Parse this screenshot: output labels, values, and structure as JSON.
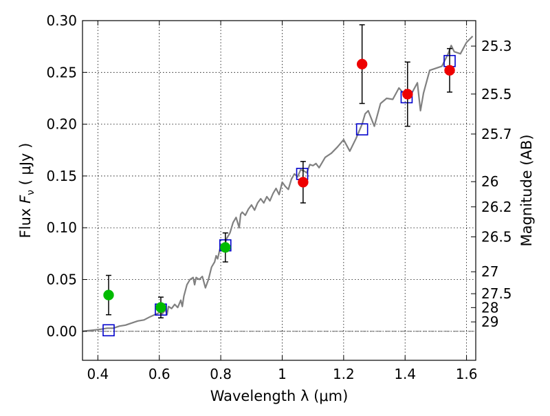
{
  "chart_data": {
    "type": "scatter",
    "xlabel": "Wavelength  λ (μm)",
    "ylabel": "Flux  F_ν  ( μJy )",
    "ylabel_parts": {
      "left": "Flux ",
      "symbol": "F",
      "subscript": "ν",
      "right": " ( μJy )"
    },
    "y2label": "Magnitude (AB)",
    "xlim": [
      0.35,
      1.63
    ],
    "ylim": [
      -0.028,
      0.3
    ],
    "grid": true,
    "x_ticks": [
      0.4,
      0.6,
      0.8,
      1.0,
      1.2,
      1.4,
      1.6
    ],
    "x_tick_labels": [
      "0.4",
      "0.6",
      "0.8",
      "1",
      "1.2",
      "1.4",
      "1.6"
    ],
    "y_ticks": [
      0.0,
      0.05,
      0.1,
      0.15,
      0.2,
      0.25,
      0.3
    ],
    "y_tick_labels": [
      "0.00",
      "0.05",
      "0.10",
      "0.15",
      "0.20",
      "0.25",
      "0.30"
    ],
    "y2_ticks": [
      {
        "label": "25.3",
        "flux": 0.2754
      },
      {
        "label": "25.5",
        "flux": 0.2291
      },
      {
        "label": "25.7",
        "flux": 0.1905
      },
      {
        "label": "26",
        "flux": 0.1445
      },
      {
        "label": "26.2",
        "flux": 0.1202
      },
      {
        "label": "26.5",
        "flux": 0.0912
      },
      {
        "label": "27",
        "flux": 0.0575
      },
      {
        "label": "27.5",
        "flux": 0.0363
      },
      {
        "label": "28",
        "flux": 0.0229
      },
      {
        "label": "29",
        "flux": 0.0091
      }
    ],
    "zero_line": 0.0,
    "series": [
      {
        "marker": "line",
        "color": "#808080",
        "x": [
          0.35,
          0.38,
          0.41,
          0.43,
          0.45,
          0.47,
          0.49,
          0.51,
          0.53,
          0.55,
          0.57,
          0.585,
          0.6,
          0.61,
          0.62,
          0.625,
          0.63,
          0.64,
          0.65,
          0.66,
          0.67,
          0.675,
          0.68,
          0.69,
          0.7,
          0.71,
          0.715,
          0.72,
          0.73,
          0.74,
          0.75,
          0.76,
          0.77,
          0.78,
          0.785,
          0.79,
          0.8,
          0.81,
          0.82,
          0.83,
          0.84,
          0.85,
          0.86,
          0.865,
          0.87,
          0.88,
          0.89,
          0.9,
          0.91,
          0.92,
          0.93,
          0.94,
          0.95,
          0.96,
          0.97,
          0.98,
          0.99,
          1.0,
          1.01,
          1.02,
          1.03,
          1.04,
          1.05,
          1.06,
          1.07,
          1.08,
          1.09,
          1.1,
          1.11,
          1.12,
          1.14,
          1.16,
          1.18,
          1.2,
          1.22,
          1.24,
          1.26,
          1.27,
          1.28,
          1.3,
          1.32,
          1.34,
          1.36,
          1.38,
          1.4,
          1.42,
          1.44,
          1.45,
          1.46,
          1.48,
          1.5,
          1.52,
          1.53,
          1.54,
          1.55,
          1.56,
          1.58,
          1.6,
          1.62
        ],
        "y": [
          0.0,
          0.001,
          0.002,
          0.003,
          0.003,
          0.005,
          0.006,
          0.008,
          0.01,
          0.011,
          0.014,
          0.016,
          0.018,
          0.017,
          0.021,
          0.016,
          0.024,
          0.022,
          0.026,
          0.023,
          0.03,
          0.024,
          0.034,
          0.045,
          0.05,
          0.052,
          0.045,
          0.052,
          0.05,
          0.053,
          0.042,
          0.05,
          0.062,
          0.067,
          0.073,
          0.07,
          0.083,
          0.08,
          0.09,
          0.095,
          0.105,
          0.11,
          0.1,
          0.113,
          0.115,
          0.112,
          0.118,
          0.122,
          0.117,
          0.124,
          0.128,
          0.124,
          0.13,
          0.126,
          0.133,
          0.138,
          0.132,
          0.144,
          0.14,
          0.137,
          0.147,
          0.152,
          0.149,
          0.156,
          0.155,
          0.153,
          0.161,
          0.16,
          0.162,
          0.158,
          0.168,
          0.172,
          0.178,
          0.185,
          0.174,
          0.186,
          0.2,
          0.21,
          0.213,
          0.198,
          0.22,
          0.225,
          0.224,
          0.235,
          0.228,
          0.229,
          0.24,
          0.213,
          0.23,
          0.252,
          0.254,
          0.256,
          0.262,
          0.268,
          0.276,
          0.27,
          0.268,
          0.279,
          0.285
        ]
      },
      {
        "marker": "open-square",
        "color": "#0000cc",
        "x": [
          0.435,
          0.605,
          0.815,
          1.065,
          1.26,
          1.405,
          1.545
        ],
        "y": [
          0.001,
          0.021,
          0.083,
          0.152,
          0.195,
          0.226,
          0.261
        ]
      },
      {
        "marker": "circle",
        "color": "#00bb00",
        "x": [
          0.435,
          0.605,
          0.815
        ],
        "y": [
          0.035,
          0.023,
          0.081
        ],
        "yerr": [
          0.019,
          0.01,
          0.014
        ]
      },
      {
        "marker": "circle",
        "color": "#ee0000",
        "x": [
          1.068,
          1.26,
          1.408,
          1.545
        ],
        "y": [
          0.144,
          0.258,
          0.229,
          0.252
        ],
        "yerr": [
          0.02,
          0.038,
          0.031,
          0.021
        ]
      }
    ]
  }
}
